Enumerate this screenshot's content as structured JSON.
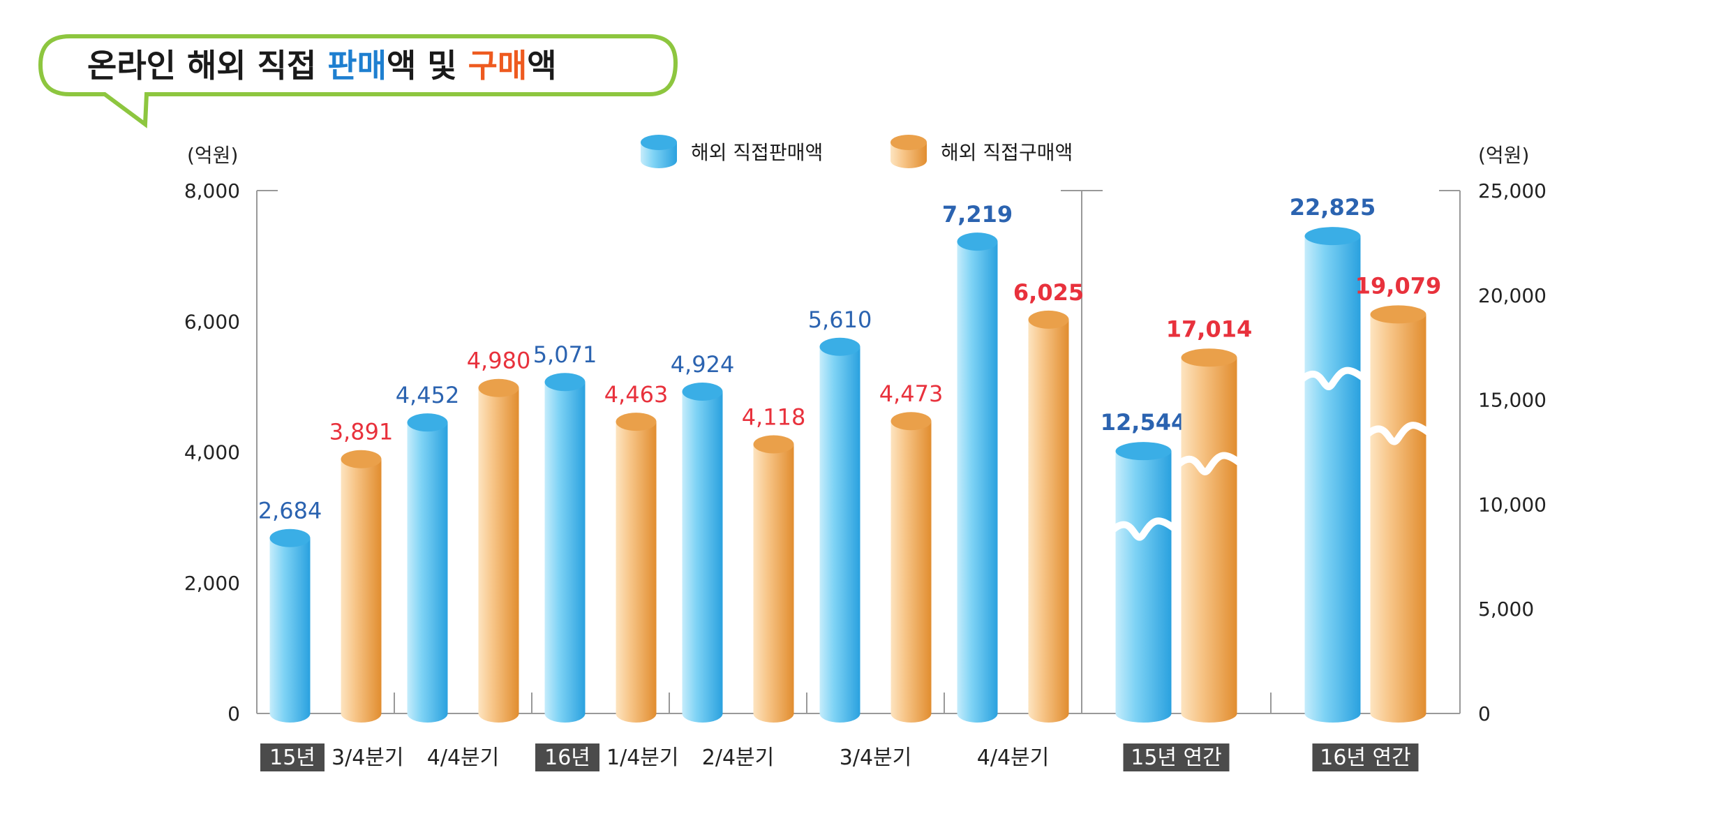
{
  "title": {
    "parts": [
      {
        "text": "온라인 해외 직접 ",
        "color": "#1a1a1a"
      },
      {
        "text": "판매",
        "color": "#1e7fd0"
      },
      {
        "text": "액 및 ",
        "color": "#1a1a1a"
      },
      {
        "text": "구매",
        "color": "#ee5a1f"
      },
      {
        "text": "액",
        "color": "#1a1a1a"
      }
    ],
    "border_color": "#8dc63f"
  },
  "colors": {
    "sales": "#42b4ea",
    "purchase": "#eea24a",
    "sales_label": "#2b63b0",
    "purchase_label": "#e8313c",
    "axis": "#999999",
    "tag_bg": "#4b4b4b"
  },
  "chart_data": [
    {
      "type": "bar",
      "axis": "left",
      "ylabel": "(억원)",
      "ylim": [
        0,
        8000
      ],
      "yticks": [
        "0",
        "2,000",
        "4,000",
        "6,000",
        "8,000"
      ],
      "categories": [
        {
          "tag": "15년",
          "label": "3/4분기"
        },
        {
          "tag": "",
          "label": "4/4분기"
        },
        {
          "tag": "16년",
          "label": "1/4분기"
        },
        {
          "tag": "",
          "label": "2/4분기"
        },
        {
          "tag": "",
          "label": "3/4분기"
        },
        {
          "tag": "",
          "label": "4/4분기"
        }
      ],
      "series": [
        {
          "name": "해외 직접판매액",
          "values": [
            2684,
            4452,
            5071,
            4924,
            5610,
            7219
          ],
          "labels": [
            "2,684",
            "4,452",
            "5,071",
            "4,924",
            "5,610",
            "7,219"
          ]
        },
        {
          "name": "해외 직접구매액",
          "values": [
            3891,
            4980,
            4463,
            4118,
            4473,
            6025
          ],
          "labels": [
            "3,891",
            "4,980",
            "4,463",
            "4,118",
            "4,473",
            "6,025"
          ]
        }
      ]
    },
    {
      "type": "bar",
      "axis": "right",
      "ylabel": "(억원)",
      "ylim": [
        0,
        25000
      ],
      "yticks": [
        "0",
        "5,000",
        "10,000",
        "15,000",
        "20,000",
        "25,000"
      ],
      "categories": [
        {
          "tag": "15년 연간",
          "label": ""
        },
        {
          "tag": "16년 연간",
          "label": ""
        }
      ],
      "series": [
        {
          "name": "해외 직접판매액",
          "values": [
            12544,
            22825
          ],
          "labels": [
            "12,544",
            "22,825"
          ]
        },
        {
          "name": "해외 직접구매액",
          "values": [
            17014,
            19079
          ],
          "labels": [
            "17,014",
            "19,079"
          ]
        }
      ],
      "axis_break": true
    }
  ]
}
